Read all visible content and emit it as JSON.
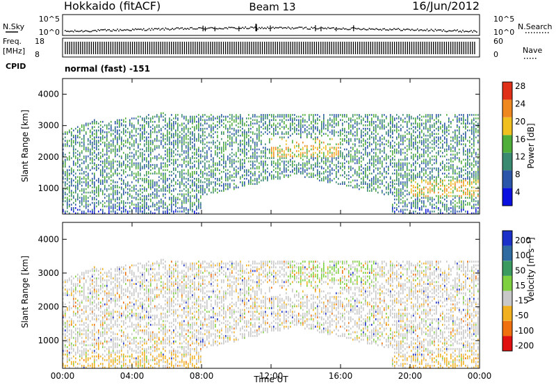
{
  "header": {
    "title": "Hokkaido (fitACF)",
    "beam": "Beam 13",
    "date": "16/Jun/2012"
  },
  "top_panels": {
    "nsky_label": "N.Sky",
    "nsearch_label": "N.Search",
    "noise_ticks": [
      "10^5",
      "10^0"
    ],
    "freq_label_line1": "Freq.",
    "freq_label_line2": "[MHz]",
    "freq_ticks": [
      "18",
      "8"
    ],
    "nave_label": "Nave",
    "nave_ticks": [
      "60",
      "0"
    ],
    "cpid_label": "CPID",
    "cpid_text": "normal (fast) -151"
  },
  "chart_data": [
    {
      "type": "heatmap",
      "name": "power-panel",
      "ylabel": "Slant Range [km]",
      "xlabel": "",
      "yticks": [
        "1000",
        "2000",
        "3000",
        "4000"
      ],
      "ylim": [
        180,
        4500
      ],
      "xlim_hours": [
        0,
        24
      ],
      "colorbar_label": "Power [dB]",
      "colorbar_ticks": [
        "4",
        "8",
        "12",
        "16",
        "20",
        "24",
        "28"
      ],
      "colorbar_colors": [
        "#0a10e0",
        "#2a55a8",
        "#3a8a72",
        "#4fae3a",
        "#f0c020",
        "#f08820",
        "#e03018"
      ],
      "colorbar_range": [
        0,
        30
      ]
    },
    {
      "type": "heatmap",
      "name": "velocity-panel",
      "ylabel": "Slant Range [km]",
      "xlabel": "Time UT",
      "yticks": [
        "1000",
        "2000",
        "3000",
        "4000"
      ],
      "ylim": [
        180,
        4500
      ],
      "xlim_hours": [
        0,
        24
      ],
      "xticks": [
        "00:00",
        "04:00",
        "08:00",
        "12:00",
        "16:00",
        "20:00",
        "00:00"
      ],
      "colorbar_label": "Velocity [m s⁻¹]",
      "colorbar_ticks": [
        "200",
        "100",
        "50",
        "15",
        "-15",
        "-50",
        "-100",
        "-200"
      ],
      "colorbar_colors": [
        "#1a30c8",
        "#2f6aa0",
        "#3a9a60",
        "#7fd040",
        "#c8c8c8",
        "#f0b020",
        "#f07010",
        "#e01010"
      ]
    }
  ]
}
